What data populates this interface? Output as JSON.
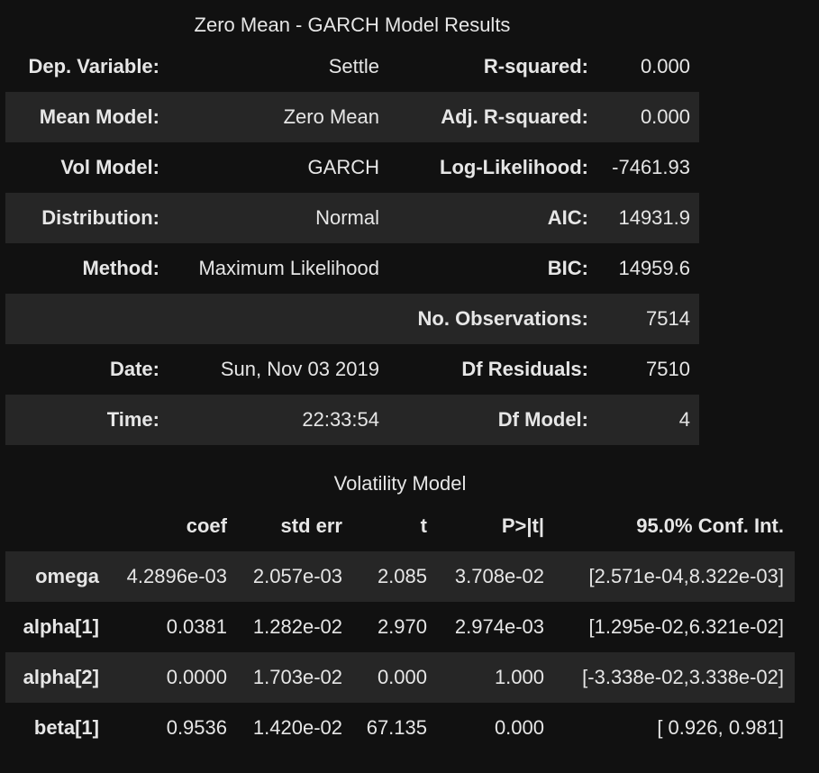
{
  "summary": {
    "caption": "Zero Mean - GARCH Model Results",
    "rows": [
      {
        "k1": "Dep. Variable:",
        "v1": "Settle",
        "k2": "R-squared:",
        "v2": "0.000"
      },
      {
        "k1": "Mean Model:",
        "v1": "Zero Mean",
        "k2": "Adj. R-squared:",
        "v2": "0.000"
      },
      {
        "k1": "Vol Model:",
        "v1": "GARCH",
        "k2": "Log-Likelihood:",
        "v2": "-7461.93"
      },
      {
        "k1": "Distribution:",
        "v1": "Normal",
        "k2": "AIC:",
        "v2": "14931.9"
      },
      {
        "k1": "Method:",
        "v1": "Maximum Likelihood",
        "k2": "BIC:",
        "v2": "14959.6"
      },
      {
        "k1": "",
        "v1": "",
        "k2": "No. Observations:",
        "v2": "7514"
      },
      {
        "k1": "Date:",
        "v1": "Sun, Nov 03 2019",
        "k2": "Df Residuals:",
        "v2": "7510"
      },
      {
        "k1": "Time:",
        "v1": "22:33:54",
        "k2": "Df Model:",
        "v2": "4"
      }
    ]
  },
  "volatility": {
    "caption": "Volatility Model",
    "headers": [
      "",
      "coef",
      "std err",
      "t",
      "P>|t|",
      "95.0% Conf. Int."
    ],
    "rows": [
      {
        "name": "omega",
        "coef": "4.2896e-03",
        "stderr": "2.057e-03",
        "t": "2.085",
        "p": "3.708e-02",
        "ci": "[2.571e-04,8.322e-03]"
      },
      {
        "name": "alpha[1]",
        "coef": "0.0381",
        "stderr": "1.282e-02",
        "t": "2.970",
        "p": "2.974e-03",
        "ci": "[1.295e-02,6.321e-02]"
      },
      {
        "name": "alpha[2]",
        "coef": "0.0000",
        "stderr": "1.703e-02",
        "t": "0.000",
        "p": "1.000",
        "ci": "[-3.338e-02,3.338e-02]"
      },
      {
        "name": "beta[1]",
        "coef": "0.9536",
        "stderr": "1.420e-02",
        "t": "67.135",
        "p": "0.000",
        "ci": "[ 0.926, 0.981]"
      }
    ]
  }
}
